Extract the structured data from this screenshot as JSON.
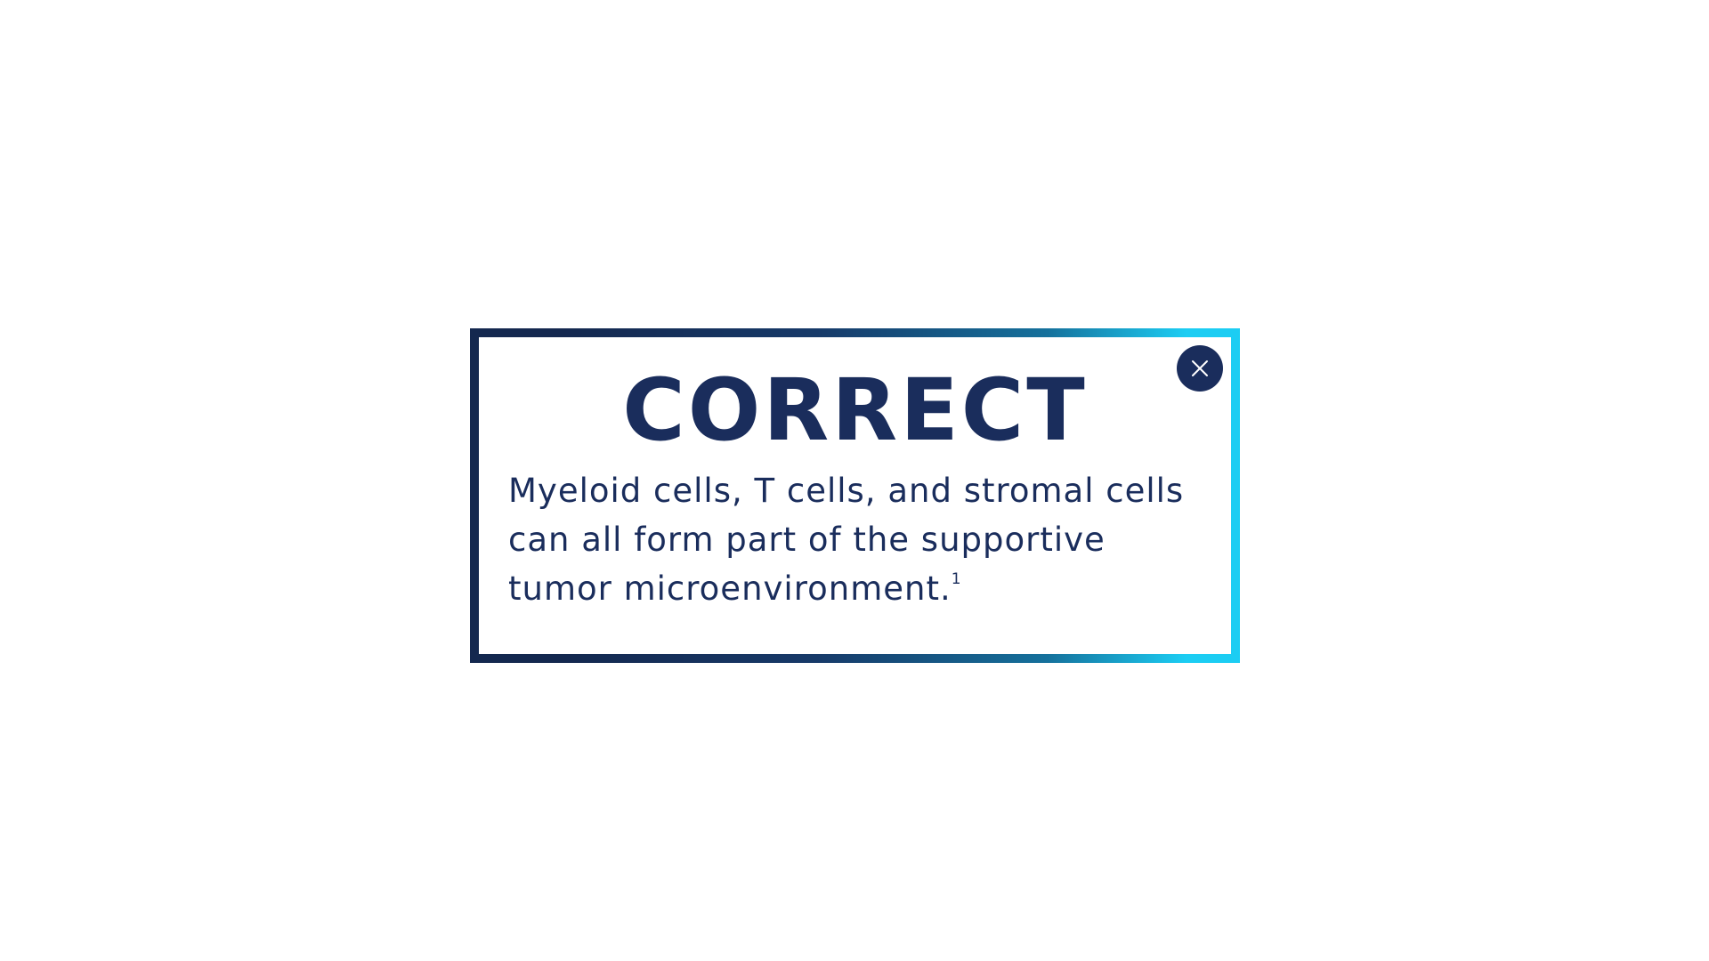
{
  "feedback": {
    "title": "CORRECT",
    "body": "Myeloid cells, T cells, and stromal cells can all form part of the supportive tumor microenvironment.",
    "footnote_ref": "1",
    "close_icon": "close-icon"
  },
  "colors": {
    "text": "#1a2d5c",
    "close_button_bg": "#1a2d5c",
    "frame_gradient_start": "#14284f",
    "frame_gradient_end": "#1ccdf3",
    "background": "#ffffff"
  }
}
